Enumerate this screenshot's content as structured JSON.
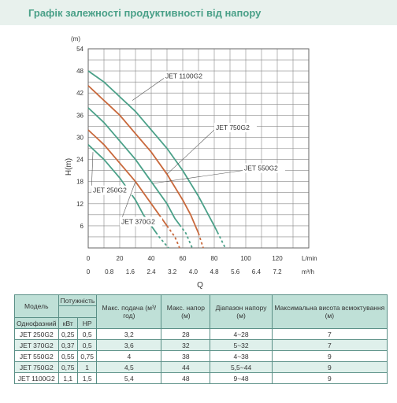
{
  "header": {
    "title": "Графік залежності продуктивності від напору"
  },
  "chart_data": {
    "type": "line",
    "y_axis": {
      "unit": "(m)",
      "label": "H(m)",
      "ticks": [
        6,
        12,
        18,
        24,
        30,
        36,
        42,
        48,
        54
      ],
      "ylim": [
        0,
        54
      ]
    },
    "x_axis_lmin": {
      "unit": "L/min",
      "ticks": [
        0,
        20,
        40,
        60,
        80,
        100,
        120
      ],
      "xlim": [
        0,
        140
      ]
    },
    "x_axis_m3h": {
      "unit": "m³/h",
      "ticks": [
        "0",
        "0.8",
        "1.6",
        "2.4",
        "3.2",
        "4.0",
        "4.8",
        "5.6",
        "6.4",
        "7.2"
      ]
    },
    "xlabel": "Q",
    "grid": true,
    "series": [
      {
        "name": "JET 1100G2",
        "color": "#4aa088",
        "x": [
          0,
          10,
          20,
          30,
          40,
          50,
          60,
          70,
          80,
          87
        ],
        "y": [
          48,
          45,
          41,
          37,
          32,
          27,
          21,
          14,
          6,
          0
        ],
        "dash_from": 82
      },
      {
        "name": "JET 750G2",
        "color": "#c8683b",
        "x": [
          0,
          10,
          20,
          30,
          40,
          50,
          60,
          65,
          70,
          73
        ],
        "y": [
          44,
          40,
          36,
          31,
          26,
          20,
          13,
          9,
          4,
          0
        ],
        "dash_from": 70
      },
      {
        "name": "JET 550G2",
        "color": "#4aa088",
        "x": [
          0,
          10,
          20,
          30,
          40,
          50,
          55,
          62,
          66
        ],
        "y": [
          38,
          34,
          29,
          24,
          18,
          12,
          8,
          4,
          0
        ],
        "dash_from": 58
      },
      {
        "name": "JET 370G2",
        "color": "#c8683b",
        "x": [
          0,
          10,
          20,
          30,
          40,
          45,
          50,
          55,
          58
        ],
        "y": [
          32,
          28,
          23,
          18,
          12,
          9,
          6,
          3,
          0
        ],
        "dash_from": 50
      },
      {
        "name": "JET 250G2",
        "color": "#4aa088",
        "x": [
          0,
          10,
          20,
          30,
          35,
          40,
          45,
          48,
          51
        ],
        "y": [
          28,
          24,
          19,
          13,
          9,
          6,
          3,
          1.5,
          0
        ],
        "dash_from": 43
      }
    ],
    "annotations": [
      {
        "text": "JET 1100G2",
        "series": 0,
        "anchor": [
          28,
          40
        ],
        "label": [
          48,
          46
        ]
      },
      {
        "text": "JET 750G2",
        "series": 1,
        "anchor": [
          50,
          20
        ],
        "label": [
          80,
          32
        ]
      },
      {
        "text": "JET 550G2",
        "series": 2,
        "anchor": [
          41,
          17.5
        ],
        "label": [
          98,
          21
        ]
      },
      {
        "text": "JET 250G2",
        "series": 4,
        "anchor": [
          3,
          26
        ],
        "label": [
          2,
          15
        ]
      },
      {
        "text": "JET 370G2",
        "series": 3,
        "anchor": [
          30,
          18
        ],
        "label": [
          20,
          6.5
        ]
      }
    ]
  },
  "table": {
    "header_row1": [
      "Модель",
      "Потужність",
      "Макс. подача (м³/год)",
      "Макс. напор (м)",
      "Діапазон напору (м)",
      "Максимальна висота всмоктування (м)"
    ],
    "header_row2": [
      "Однофазний",
      "кВт",
      "HP"
    ],
    "rows": [
      [
        "JET 250G2",
        "0,25",
        "0,5",
        "3,2",
        "28",
        "4~28",
        "7"
      ],
      [
        "JET 370G2",
        "0,37",
        "0,5",
        "3,6",
        "32",
        "5~32",
        "7"
      ],
      [
        "JET 550G2",
        "0,55",
        "0,75",
        "4",
        "38",
        "4~38",
        "9"
      ],
      [
        "JET 750G2",
        "0,75",
        "1",
        "4,5",
        "44",
        "5,5~44",
        "9"
      ],
      [
        "JET 1100G2",
        "1,1",
        "1,5",
        "5,4",
        "48",
        "9~48",
        "9"
      ]
    ]
  }
}
